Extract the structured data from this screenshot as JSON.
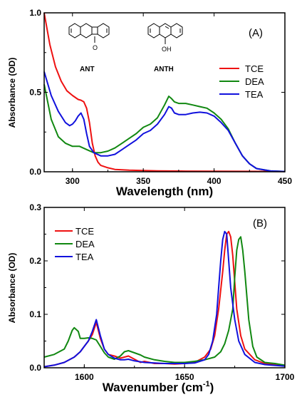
{
  "colors": {
    "TCE": "#ee1111",
    "DEA": "#118811",
    "TEA": "#1111dd"
  },
  "chart_data": [
    {
      "type": "line",
      "panel_label": "(A)",
      "xlabel": "Wavelength (nm)",
      "ylabel": "Absorbance (OD)",
      "xlim": [
        280,
        450
      ],
      "ylim": [
        0,
        1.0
      ],
      "xticks": [
        300,
        350,
        400,
        450
      ],
      "yticks": [
        0.0,
        0.5,
        1.0
      ],
      "ytick_labels": [
        "0.0",
        "0.5",
        "1.0"
      ],
      "legend": "right",
      "molecules": [
        {
          "name": "ANT",
          "atom": "O"
        },
        {
          "name": "ANTH",
          "atom": "OH"
        }
      ],
      "series": [
        {
          "name": "TCE",
          "color": "#ee1111",
          "x": [
            280,
            284,
            288,
            292,
            296,
            300,
            304,
            306,
            308,
            310,
            312,
            314,
            316,
            318,
            320,
            325,
            330,
            340,
            360,
            380,
            400,
            450
          ],
          "y": [
            1.0,
            0.8,
            0.66,
            0.57,
            0.51,
            0.48,
            0.455,
            0.45,
            0.44,
            0.4,
            0.31,
            0.18,
            0.1,
            0.06,
            0.04,
            0.025,
            0.015,
            0.01,
            0.006,
            0.004,
            0.003,
            0.002
          ]
        },
        {
          "name": "DEA",
          "color": "#118811",
          "x": [
            280,
            285,
            290,
            295,
            300,
            305,
            310,
            315,
            320,
            325,
            330,
            335,
            340,
            345,
            350,
            355,
            360,
            365,
            368,
            370,
            372,
            375,
            380,
            385,
            390,
            395,
            400,
            405,
            410,
            415,
            420,
            425,
            430,
            440,
            450
          ],
          "y": [
            0.55,
            0.33,
            0.22,
            0.18,
            0.16,
            0.16,
            0.14,
            0.12,
            0.12,
            0.13,
            0.15,
            0.18,
            0.21,
            0.24,
            0.28,
            0.3,
            0.34,
            0.42,
            0.475,
            0.46,
            0.44,
            0.43,
            0.43,
            0.42,
            0.41,
            0.4,
            0.37,
            0.33,
            0.27,
            0.18,
            0.1,
            0.05,
            0.02,
            0.005,
            0.002
          ]
        },
        {
          "name": "TEA",
          "color": "#1111dd",
          "x": [
            280,
            285,
            290,
            295,
            298,
            300,
            302,
            304,
            306,
            308,
            310,
            312,
            315,
            320,
            325,
            330,
            335,
            340,
            345,
            350,
            355,
            360,
            365,
            368,
            370,
            372,
            375,
            380,
            385,
            390,
            395,
            400,
            405,
            410,
            415,
            420,
            425,
            430,
            440,
            450
          ],
          "y": [
            0.63,
            0.48,
            0.38,
            0.31,
            0.29,
            0.3,
            0.32,
            0.35,
            0.37,
            0.33,
            0.24,
            0.16,
            0.12,
            0.1,
            0.1,
            0.11,
            0.14,
            0.17,
            0.2,
            0.24,
            0.26,
            0.3,
            0.36,
            0.41,
            0.4,
            0.37,
            0.36,
            0.36,
            0.37,
            0.375,
            0.37,
            0.35,
            0.31,
            0.26,
            0.18,
            0.1,
            0.05,
            0.02,
            0.005,
            0.002
          ]
        }
      ]
    },
    {
      "type": "line",
      "panel_label": "(B)",
      "xlabel": "Wavenumber (cm",
      "xlabel_sup": "-1",
      "xlabel_end": ")",
      "ylabel": "Absorbance (OD)",
      "xlim": [
        1580,
        1700
      ],
      "ylim": [
        0,
        0.3
      ],
      "xticks": [
        1600,
        1650,
        1700
      ],
      "yticks": [
        0.0,
        0.1,
        0.2,
        0.3
      ],
      "ytick_labels": [
        "0.0",
        "0.1",
        "0.2",
        "0.3"
      ],
      "legend": "top-left",
      "series": [
        {
          "name": "TCE",
          "color": "#ee1111",
          "x": [
            1580,
            1585,
            1590,
            1595,
            1598,
            1600,
            1602,
            1604,
            1606,
            1608,
            1610,
            1612,
            1615,
            1618,
            1620,
            1622,
            1625,
            1628,
            1630,
            1635,
            1640,
            1645,
            1650,
            1655,
            1660,
            1663,
            1665,
            1667,
            1669,
            1670,
            1671,
            1672,
            1673,
            1674,
            1675,
            1676,
            1678,
            1680,
            1685,
            1690,
            1700
          ],
          "y": [
            0.002,
            0.005,
            0.01,
            0.02,
            0.03,
            0.04,
            0.05,
            0.062,
            0.085,
            0.055,
            0.035,
            0.025,
            0.022,
            0.018,
            0.02,
            0.022,
            0.016,
            0.01,
            0.012,
            0.008,
            0.008,
            0.007,
            0.008,
            0.01,
            0.02,
            0.035,
            0.06,
            0.11,
            0.18,
            0.22,
            0.25,
            0.255,
            0.245,
            0.21,
            0.16,
            0.11,
            0.06,
            0.035,
            0.015,
            0.008,
            0.003
          ]
        },
        {
          "name": "DEA",
          "color": "#118811",
          "x": [
            1580,
            1585,
            1590,
            1592,
            1594,
            1595,
            1597,
            1598,
            1600,
            1602,
            1604,
            1606,
            1608,
            1610,
            1612,
            1615,
            1618,
            1620,
            1622,
            1625,
            1628,
            1630,
            1635,
            1640,
            1645,
            1650,
            1655,
            1660,
            1665,
            1668,
            1670,
            1672,
            1674,
            1675,
            1676,
            1677,
            1678,
            1679,
            1680,
            1682,
            1684,
            1686,
            1690,
            1695,
            1700
          ],
          "y": [
            0.02,
            0.025,
            0.035,
            0.05,
            0.07,
            0.075,
            0.068,
            0.055,
            0.055,
            0.056,
            0.055,
            0.052,
            0.04,
            0.028,
            0.02,
            0.016,
            0.022,
            0.03,
            0.032,
            0.028,
            0.024,
            0.02,
            0.015,
            0.012,
            0.01,
            0.01,
            0.012,
            0.015,
            0.02,
            0.03,
            0.045,
            0.07,
            0.11,
            0.17,
            0.22,
            0.24,
            0.245,
            0.22,
            0.18,
            0.09,
            0.04,
            0.02,
            0.01,
            0.008,
            0.005
          ]
        },
        {
          "name": "TEA",
          "color": "#1111dd",
          "x": [
            1580,
            1585,
            1590,
            1595,
            1598,
            1600,
            1602,
            1604,
            1606,
            1608,
            1610,
            1612,
            1615,
            1618,
            1620,
            1622,
            1625,
            1630,
            1635,
            1640,
            1645,
            1650,
            1655,
            1660,
            1662,
            1664,
            1666,
            1667,
            1668,
            1669,
            1670,
            1671,
            1672,
            1673,
            1675,
            1677,
            1680,
            1685,
            1690,
            1700
          ],
          "y": [
            0.002,
            0.005,
            0.01,
            0.02,
            0.03,
            0.04,
            0.05,
            0.068,
            0.09,
            0.06,
            0.035,
            0.025,
            0.018,
            0.015,
            0.015,
            0.016,
            0.013,
            0.01,
            0.009,
            0.008,
            0.008,
            0.008,
            0.009,
            0.015,
            0.025,
            0.05,
            0.1,
            0.15,
            0.2,
            0.24,
            0.255,
            0.25,
            0.2,
            0.15,
            0.09,
            0.05,
            0.025,
            0.01,
            0.006,
            0.003
          ]
        }
      ]
    }
  ]
}
